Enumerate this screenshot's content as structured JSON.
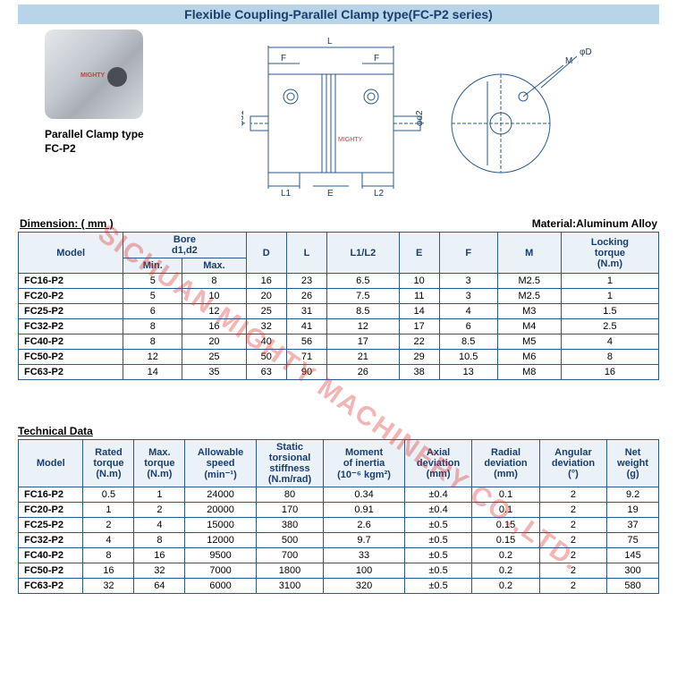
{
  "header_title": "Flexible Coupling-Parallel Clamp type(FC-P2 series)",
  "photo_caption_line1": "Parallel Clamp type",
  "photo_caption_line2": "FC-P2",
  "dim_section_label": "Dimension: ( mm )",
  "material_label": "Material:Aluminum Alloy",
  "tech_section_label": "Technical Data",
  "watermark_text": "SICHUAN MIGHTY MACHINERY CO.,LTD.",
  "diagram_labels": {
    "L": "L",
    "F": "F",
    "E": "E",
    "L1": "L1",
    "L2": "L2",
    "d1": "φd1",
    "d2": "φd2",
    "M": "M",
    "phi": "φD",
    "mighty": "MIGHTY"
  },
  "dim_table": {
    "headers": {
      "model": "Model",
      "bore": "Bore\nd1,d2",
      "min": "Min.",
      "max": "Max.",
      "D": "D",
      "L": "L",
      "L1L2": "L1/L2",
      "E": "E",
      "F": "F",
      "M": "M",
      "lock": "Locking\ntorque\n(N.m)"
    },
    "rows": [
      {
        "model": "FC16-P2",
        "min": "5",
        "max": "8",
        "D": "16",
        "L": "23",
        "L1L2": "6.5",
        "E": "10",
        "F": "3",
        "M": "M2.5",
        "lock": "1"
      },
      {
        "model": "FC20-P2",
        "min": "5",
        "max": "10",
        "D": "20",
        "L": "26",
        "L1L2": "7.5",
        "E": "11",
        "F": "3",
        "M": "M2.5",
        "lock": "1"
      },
      {
        "model": "FC25-P2",
        "min": "6",
        "max": "12",
        "D": "25",
        "L": "31",
        "L1L2": "8.5",
        "E": "14",
        "F": "4",
        "M": "M3",
        "lock": "1.5"
      },
      {
        "model": "FC32-P2",
        "min": "8",
        "max": "16",
        "D": "32",
        "L": "41",
        "L1L2": "12",
        "E": "17",
        "F": "6",
        "M": "M4",
        "lock": "2.5"
      },
      {
        "model": "FC40-P2",
        "min": "8",
        "max": "20",
        "D": "40",
        "L": "56",
        "L1L2": "17",
        "E": "22",
        "F": "8.5",
        "M": "M5",
        "lock": "4"
      },
      {
        "model": "FC50-P2",
        "min": "12",
        "max": "25",
        "D": "50",
        "L": "71",
        "L1L2": "21",
        "E": "29",
        "F": "10.5",
        "M": "M6",
        "lock": "8"
      },
      {
        "model": "FC63-P2",
        "min": "14",
        "max": "35",
        "D": "63",
        "L": "90",
        "L1L2": "26",
        "E": "38",
        "F": "13",
        "M": "M8",
        "lock": "16"
      }
    ]
  },
  "tech_table": {
    "headers": {
      "model": "Model",
      "rated": "Rated\ntorque\n(N.m)",
      "max": "Max.\ntorque\n(N.m)",
      "speed": "Allowable\nspeed\n(min⁻¹)",
      "stiff": "Static\ntorsional\nstiffness\n(N.m/rad)",
      "inertia": "Moment\nof inertia\n(10⁻⁶ kgm²)",
      "axial": "Axial\ndeviation\n(mm)",
      "radial": "Radial\ndeviation\n(mm)",
      "angular": "Angular\ndeviation\n(°)",
      "weight": "Net\nweight\n(g)"
    },
    "rows": [
      {
        "model": "FC16-P2",
        "rated": "0.5",
        "max": "1",
        "speed": "24000",
        "stiff": "80",
        "inertia": "0.34",
        "axial": "±0.4",
        "radial": "0.1",
        "angular": "2",
        "weight": "9.2"
      },
      {
        "model": "FC20-P2",
        "rated": "1",
        "max": "2",
        "speed": "20000",
        "stiff": "170",
        "inertia": "0.91",
        "axial": "±0.4",
        "radial": "0.1",
        "angular": "2",
        "weight": "19"
      },
      {
        "model": "FC25-P2",
        "rated": "2",
        "max": "4",
        "speed": "15000",
        "stiff": "380",
        "inertia": "2.6",
        "axial": "±0.5",
        "radial": "0.15",
        "angular": "2",
        "weight": "37"
      },
      {
        "model": "FC32-P2",
        "rated": "4",
        "max": "8",
        "speed": "12000",
        "stiff": "500",
        "inertia": "9.7",
        "axial": "±0.5",
        "radial": "0.15",
        "angular": "2",
        "weight": "75"
      },
      {
        "model": "FC40-P2",
        "rated": "8",
        "max": "16",
        "speed": "9500",
        "stiff": "700",
        "inertia": "33",
        "axial": "±0.5",
        "radial": "0.2",
        "angular": "2",
        "weight": "145"
      },
      {
        "model": "FC50-P2",
        "rated": "16",
        "max": "32",
        "speed": "7000",
        "stiff": "1800",
        "inertia": "100",
        "axial": "±0.5",
        "radial": "0.2",
        "angular": "2",
        "weight": "300"
      },
      {
        "model": "FC63-P2",
        "rated": "32",
        "max": "64",
        "speed": "6000",
        "stiff": "3100",
        "inertia": "320",
        "axial": "±0.5",
        "radial": "0.2",
        "angular": "2",
        "weight": "580"
      }
    ]
  }
}
